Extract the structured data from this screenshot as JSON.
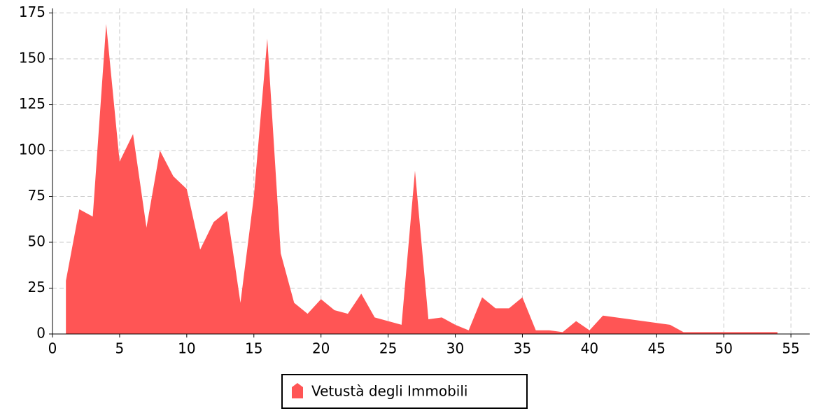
{
  "chart_data": {
    "type": "area",
    "x": [
      1,
      2,
      3,
      4,
      5,
      6,
      7,
      8,
      9,
      10,
      11,
      12,
      13,
      14,
      15,
      16,
      17,
      18,
      19,
      20,
      21,
      22,
      23,
      24,
      25,
      26,
      27,
      28,
      29,
      30,
      31,
      32,
      33,
      34,
      35,
      36,
      37,
      38,
      39,
      40,
      41,
      46,
      47,
      48,
      49,
      50,
      51,
      52,
      53,
      54
    ],
    "series": [
      {
        "name": "Vetustà degli Immobili",
        "color": "#ff5555",
        "values": [
          29,
          68,
          64,
          169,
          94,
          109,
          58,
          100,
          86,
          79,
          46,
          61,
          67,
          17,
          75,
          161,
          44,
          17,
          11,
          19,
          13,
          11,
          22,
          9,
          7,
          5,
          89,
          8,
          9,
          5,
          2,
          20,
          14,
          14,
          20,
          2,
          2,
          1,
          7,
          2,
          10,
          5,
          1,
          1,
          1,
          1,
          1,
          1,
          1,
          1
        ]
      }
    ],
    "xlim": [
      0,
      56.4
    ],
    "ylim": [
      0,
      177.5
    ],
    "xticks": [
      0,
      5,
      10,
      15,
      20,
      25,
      30,
      35,
      40,
      45,
      50,
      55
    ],
    "yticks": [
      0,
      25,
      50,
      75,
      100,
      125,
      150,
      175
    ],
    "grid": true,
    "legend": "bottom"
  }
}
